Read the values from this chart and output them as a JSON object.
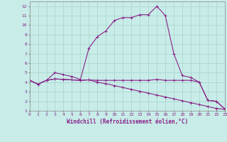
{
  "xlabel": "Windchill (Refroidissement éolien,°C)",
  "background_color": "#c8ece8",
  "grid_color": "#a8d4cc",
  "line_color": "#882288",
  "x": [
    0,
    1,
    2,
    3,
    4,
    5,
    6,
    7,
    8,
    9,
    10,
    11,
    12,
    13,
    14,
    15,
    16,
    17,
    18,
    19,
    20,
    21,
    22,
    23
  ],
  "line1_y": [
    4.2,
    3.8,
    4.2,
    5.0,
    4.8,
    4.6,
    4.3,
    7.6,
    8.8,
    9.4,
    10.5,
    10.8,
    10.8,
    11.1,
    11.1,
    12.0,
    11.0,
    7.0,
    4.7,
    4.5,
    4.0,
    2.1,
    2.0,
    1.2
  ],
  "line2_y": [
    4.2,
    3.8,
    4.2,
    4.35,
    4.3,
    4.25,
    4.2,
    4.25,
    4.2,
    4.2,
    4.2,
    4.2,
    4.2,
    4.2,
    4.2,
    4.3,
    4.2,
    4.2,
    4.2,
    4.2,
    4.0,
    2.1,
    2.0,
    1.2
  ],
  "line3_y": [
    4.2,
    3.8,
    4.2,
    4.35,
    4.3,
    4.25,
    4.2,
    4.25,
    4.0,
    3.85,
    3.65,
    3.45,
    3.25,
    3.05,
    2.85,
    2.65,
    2.45,
    2.25,
    2.05,
    1.85,
    1.65,
    1.45,
    1.25,
    1.15
  ],
  "xlim": [
    0,
    23
  ],
  "ylim": [
    1,
    12.5
  ],
  "yticks": [
    1,
    2,
    3,
    4,
    5,
    6,
    7,
    8,
    9,
    10,
    11,
    12
  ],
  "xticks": [
    0,
    1,
    2,
    3,
    4,
    5,
    6,
    7,
    8,
    9,
    10,
    11,
    12,
    13,
    14,
    15,
    16,
    17,
    18,
    19,
    20,
    21,
    22,
    23
  ],
  "tick_fontsize": 4.5,
  "xlabel_fontsize": 5.5
}
